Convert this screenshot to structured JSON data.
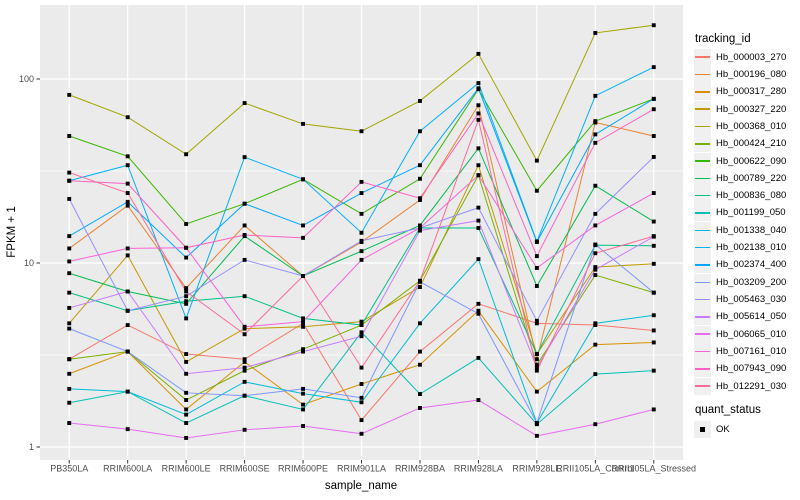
{
  "legend": {
    "tracking_title": "tracking_id",
    "quant_title": "quant_status",
    "quant_ok_label": "OK"
  },
  "style": {
    "panel_bg": "#EBEBEB",
    "grid_color": "#FFFFFF",
    "tick_color": "#333333",
    "tick_text_color": "#4D4D4D",
    "point_color": "#000000",
    "legend_key_bg": "#F0F0F0"
  },
  "chart_data": {
    "type": "line",
    "title": "",
    "xlabel": "sample_name",
    "ylabel": "FPKM + 1",
    "y_scale": "log10",
    "y_ticks": [
      1,
      10,
      100
    ],
    "y_minor_ticks": [
      3.1623,
      31.623
    ],
    "ylim": [
      0.86,
      250
    ],
    "grid": true,
    "legend_position": "right",
    "point_shape": "filled-black-square (quant_status = OK)",
    "x_categories": [
      "PB350LA",
      "RRIM600LA",
      "RRIM600LE",
      "RRIM600SE",
      "RRIM600PE",
      "RRIM901LA",
      "RRIM928BA",
      "RRIM928LA",
      "RRIM928LE",
      "RRII105LA_Control",
      "RRII105LA_Stressed"
    ],
    "series": [
      {
        "name": "Hb_000003_270",
        "color": "#F8766D",
        "values": [
          3.0,
          4.6,
          3.2,
          3.0,
          4.7,
          1.4,
          3.3,
          6.0,
          4.7,
          4.6,
          4.3
        ]
      },
      {
        "name": "Hb_000196_080",
        "color": "#EA8331",
        "values": [
          12,
          20.5,
          7.3,
          16,
          8.5,
          13,
          22,
          72,
          3.0,
          58,
          49
        ]
      },
      {
        "name": "Hb_000317_280",
        "color": "#D89000",
        "values": [
          2.5,
          3.3,
          1.6,
          2.9,
          1.7,
          2.2,
          2.8,
          5.5,
          2.0,
          3.6,
          3.7
        ]
      },
      {
        "name": "Hb_000327_220",
        "color": "#C09B00",
        "values": [
          4.7,
          11,
          2.9,
          4.4,
          4.5,
          4.8,
          7.4,
          34,
          3.2,
          9.5,
          9.9
        ]
      },
      {
        "name": "Hb_000368_010",
        "color": "#A3A500",
        "values": [
          82,
          62,
          39,
          74,
          57,
          52,
          76,
          137,
          36,
          178,
          196
        ]
      },
      {
        "name": "Hb_000424_210",
        "color": "#7CAE00",
        "values": [
          3.0,
          3.3,
          1.8,
          2.6,
          3.4,
          4.6,
          8.0,
          30,
          2.8,
          8.6,
          6.9
        ]
      },
      {
        "name": "Hb_000622_090",
        "color": "#39B600",
        "values": [
          49,
          38,
          16.3,
          21,
          28.5,
          18.5,
          28.7,
          88,
          24.7,
          59,
          78
        ]
      },
      {
        "name": "Hb_000789_220",
        "color": "#00BB4E",
        "values": [
          8.8,
          7.0,
          6.0,
          14,
          8.5,
          11.6,
          16,
          42,
          7.5,
          26.3,
          16.8
        ]
      },
      {
        "name": "Hb_000836_080",
        "color": "#00C087",
        "values": [
          6.9,
          5.5,
          6.2,
          6.6,
          5.0,
          4.6,
          15.5,
          15.5,
          3.2,
          12.5,
          12.4
        ]
      },
      {
        "name": "Hb_001199_050",
        "color": "#00C0B4",
        "values": [
          1.74,
          2.0,
          1.35,
          1.9,
          1.6,
          4.2,
          1.94,
          3.05,
          1.33,
          2.49,
          2.6
        ]
      },
      {
        "name": "Hb_001338_040",
        "color": "#00BCD8",
        "values": [
          2.07,
          2.0,
          1.5,
          2.26,
          1.95,
          1.75,
          4.7,
          10.5,
          1.35,
          4.7,
          5.2
        ]
      },
      {
        "name": "Hb_002138_010",
        "color": "#00B0F6",
        "values": [
          28,
          34,
          5.0,
          37.6,
          28.5,
          14.6,
          52,
          95,
          13.1,
          81,
          116
        ]
      },
      {
        "name": "Hb_002374_400",
        "color": "#00A9FF",
        "values": [
          14,
          21.5,
          10.7,
          21,
          16,
          24,
          34,
          89,
          13.0,
          50,
          78
        ]
      },
      {
        "name": "Hb_003209_200",
        "color": "#7C96FF",
        "values": [
          4.4,
          3.3,
          1.97,
          1.9,
          2.07,
          1.85,
          7.9,
          5.3,
          1.35,
          12.6,
          6.9
        ]
      },
      {
        "name": "Hb_005463_030",
        "color": "#9590FF",
        "values": [
          22.3,
          5.5,
          6.6,
          10.4,
          8.5,
          13.2,
          15.5,
          20,
          4.85,
          18.5,
          37.7
        ]
      },
      {
        "name": "Hb_005614_050",
        "color": "#C77CFF",
        "values": [
          5.7,
          7.0,
          2.5,
          2.7,
          3.3,
          4.0,
          15.0,
          17,
          2.7,
          9.2,
          13.9
        ]
      },
      {
        "name": "Hb_006065_010",
        "color": "#E76BF3",
        "values": [
          1.35,
          1.25,
          1.12,
          1.24,
          1.3,
          1.18,
          1.63,
          1.8,
          1.15,
          1.33,
          1.6
        ]
      },
      {
        "name": "Hb_007161_010",
        "color": "#FA62DB",
        "values": [
          10.2,
          12,
          12.1,
          4.5,
          4.8,
          10.4,
          15.5,
          30,
          9.4,
          16,
          24
        ]
      },
      {
        "name": "Hb_007943_090",
        "color": "#FF61C2",
        "values": [
          28,
          27,
          12.1,
          14.2,
          13.7,
          27.6,
          22.5,
          65,
          10.9,
          45,
          68.5
        ]
      },
      {
        "name": "Hb_012291_030",
        "color": "#FF6A98",
        "values": [
          31,
          24,
          7.0,
          4.1,
          8.5,
          2.7,
          8.0,
          60,
          2.6,
          11.3,
          14
        ]
      }
    ]
  }
}
